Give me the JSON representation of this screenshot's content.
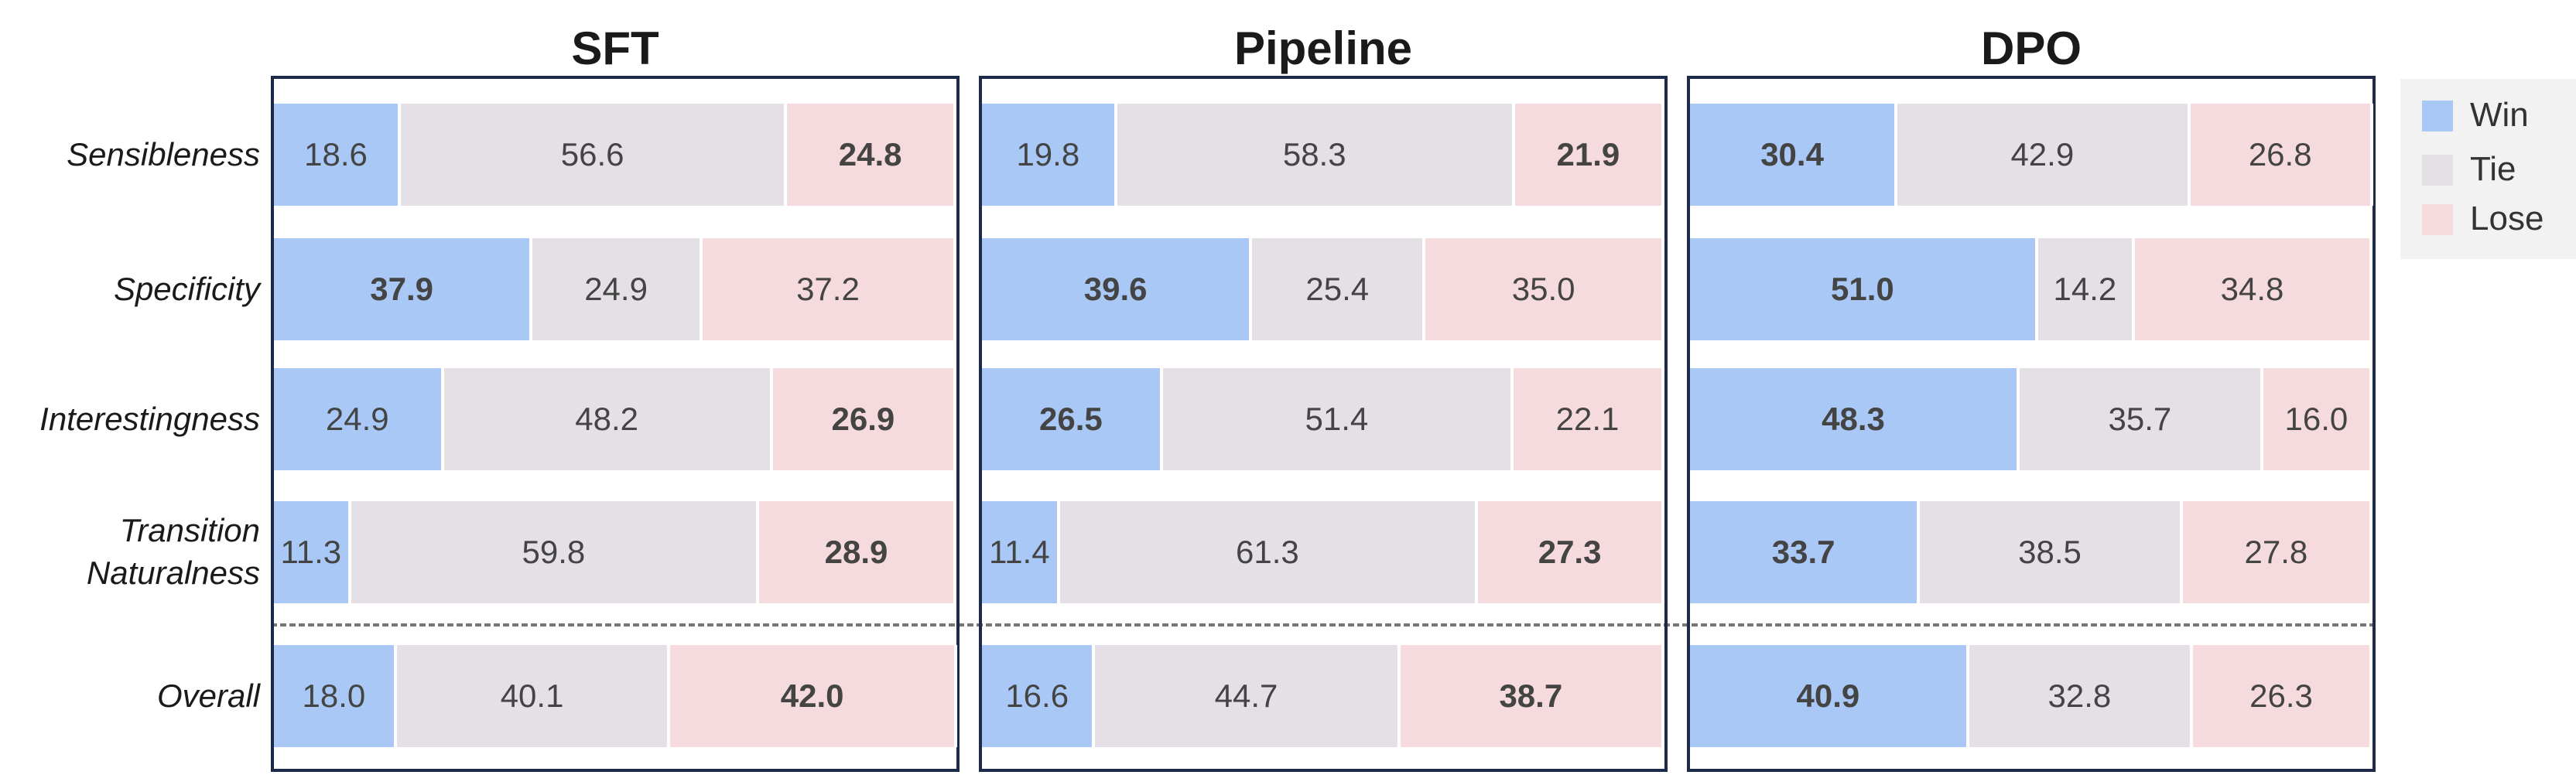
{
  "chart_data": [
    {
      "type": "bar",
      "orientation": "horizontal",
      "stacked": true,
      "title": "SFT",
      "legend": "right",
      "categories": [
        "Sensibleness",
        "Specificity",
        "Interestingness",
        "Transition Naturalness",
        "Overall"
      ],
      "xlim": [
        0,
        100
      ],
      "series": [
        {
          "name": "Win",
          "color": "#a9c8f5",
          "values": [
            18.6,
            37.9,
            24.9,
            11.3,
            18.0
          ],
          "value_labels": [
            "18.6",
            "37.9",
            "24.9",
            "11.3",
            "18.0"
          ]
        },
        {
          "name": "Tie",
          "color": "#e4e0e6",
          "values": [
            56.6,
            24.9,
            48.2,
            59.8,
            40.1
          ],
          "value_labels": [
            "56.6",
            "24.9",
            "48.2",
            "59.8",
            "40.1"
          ]
        },
        {
          "name": "Lose",
          "color": "#f6dbde",
          "values": [
            24.8,
            37.2,
            26.9,
            28.9,
            42.0
          ],
          "value_labels": [
            "24.8",
            "37.2",
            "26.9",
            "28.9",
            "42.0"
          ]
        }
      ]
    },
    {
      "type": "bar",
      "orientation": "horizontal",
      "stacked": true,
      "title": "Pipeline",
      "xlim": [
        0,
        100
      ],
      "series": [
        {
          "color": "#a9c8f5",
          "values": [
            19.8,
            39.6,
            26.5,
            11.4,
            16.6
          ],
          "value_labels": [
            "19.8",
            "39.6",
            "26.5",
            "11.4",
            "16.6"
          ]
        },
        {
          "color": "#e4e0e6",
          "values": [
            58.3,
            25.4,
            51.4,
            61.3,
            44.7
          ],
          "value_labels": [
            "58.3",
            "25.4",
            "51.4",
            "61.3",
            "44.7"
          ]
        },
        {
          "color": "#f6dbde",
          "values": [
            21.9,
            35.0,
            22.1,
            27.3,
            38.7
          ],
          "value_labels": [
            "21.9",
            "35.0",
            "22.1",
            "27.3",
            "38.7"
          ]
        }
      ]
    },
    {
      "type": "bar",
      "orientation": "horizontal",
      "stacked": true,
      "title": "DPO",
      "xlim": [
        0,
        100
      ],
      "series": [
        {
          "color": "#a9c8f5",
          "values": [
            30.4,
            51.0,
            48.3,
            33.7,
            40.9
          ],
          "value_labels": [
            "30.4",
            "51.0",
            "48.3",
            "33.7",
            "40.9"
          ]
        },
        {
          "color": "#e4e0e6",
          "values": [
            42.9,
            14.2,
            35.7,
            38.5,
            32.8
          ],
          "value_labels": [
            "42.9",
            "14.2",
            "35.7",
            "38.5",
            "32.8"
          ]
        },
        {
          "color": "#f6dbde",
          "values": [
            26.8,
            34.8,
            16.0,
            27.8,
            26.3
          ],
          "value_labels": [
            "26.8",
            "34.8",
            "16.0",
            "27.8",
            "26.3"
          ]
        }
      ]
    }
  ]
}
